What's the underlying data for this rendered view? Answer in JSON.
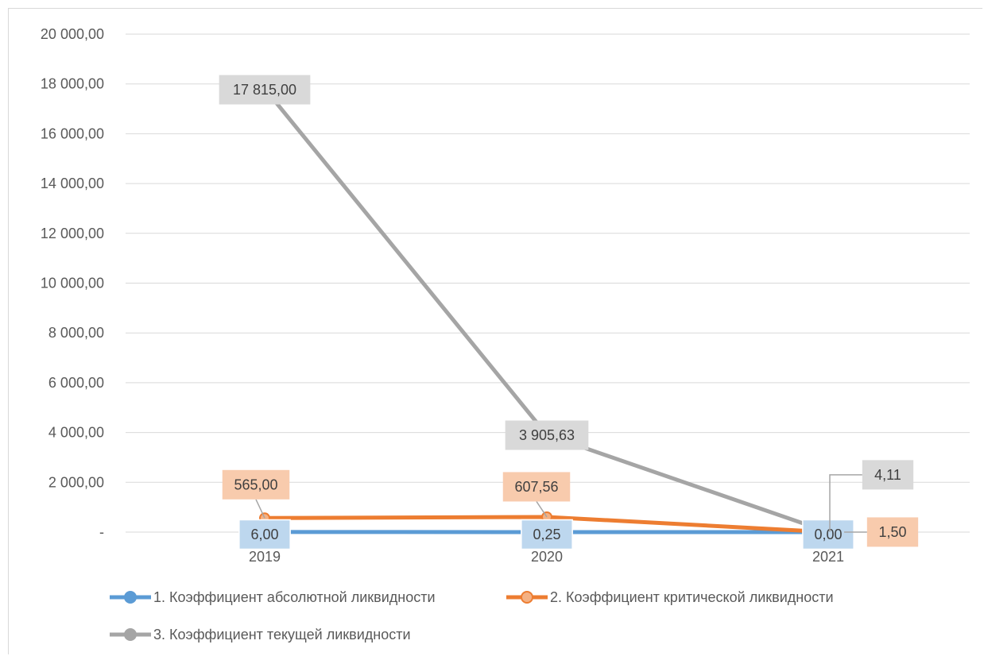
{
  "chart_data": {
    "type": "line",
    "categories": [
      "2019",
      "2020",
      "2021"
    ],
    "ylim": [
      0,
      20000
    ],
    "y_ticks": [
      {
        "value": 20000,
        "label": "20 000,00"
      },
      {
        "value": 18000,
        "label": "18 000,00"
      },
      {
        "value": 16000,
        "label": "16 000,00"
      },
      {
        "value": 14000,
        "label": "14 000,00"
      },
      {
        "value": 12000,
        "label": "12 000,00"
      },
      {
        "value": 10000,
        "label": "10 000,00"
      },
      {
        "value": 8000,
        "label": "8 000,00"
      },
      {
        "value": 6000,
        "label": "6 000,00"
      },
      {
        "value": 4000,
        "label": "4 000,00"
      },
      {
        "value": 2000,
        "label": "2 000,00"
      },
      {
        "value": 0,
        "label": "-"
      }
    ],
    "grid": true,
    "legend_position": "bottom",
    "series": [
      {
        "name": "1. Коэффициент абсолютной ликвидности",
        "color": "#5b9bd5",
        "label_bg": "#bdd7ee",
        "values": [
          6,
          0.25,
          0
        ],
        "labels": [
          "6,00",
          "0,25",
          "0,00"
        ]
      },
      {
        "name": "2. Коэффициент критической ликвидности",
        "color": "#ed7d31",
        "label_bg": "#f8cbad",
        "values": [
          565,
          607.56,
          1.5
        ],
        "labels": [
          "565,00",
          "607,56",
          "1,50"
        ]
      },
      {
        "name": "3. Коэффициент текущей ликвидности",
        "color": "#a5a5a5",
        "label_bg": "#d9d9d9",
        "values": [
          17815,
          3905.63,
          4.11
        ],
        "labels": [
          "17 815,00",
          "3 905,63",
          "4,11"
        ]
      }
    ]
  }
}
